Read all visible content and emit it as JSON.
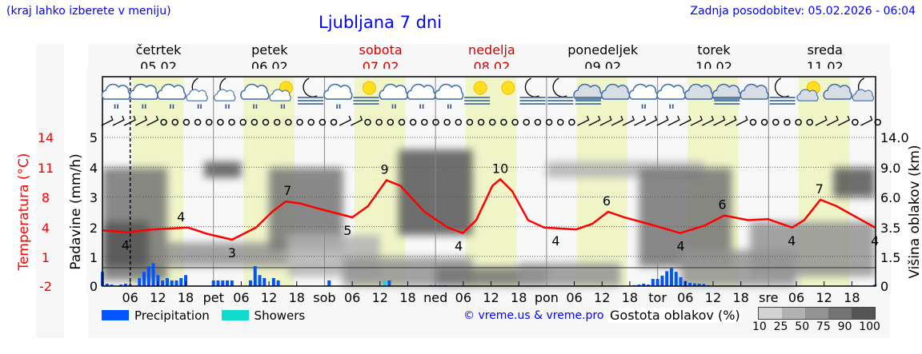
{
  "header": {
    "hint": "(kraj lahko izberete v meniju)",
    "title": "Ljubljana 7 dni",
    "updated": "Zadnja posodobitev: 05.02.2026 - 06:04"
  },
  "days": [
    {
      "name": "četrtek",
      "date": "05.02",
      "weekend": false
    },
    {
      "name": "petek",
      "date": "06.02",
      "weekend": false
    },
    {
      "name": "sobota",
      "date": "07.02",
      "weekend": true
    },
    {
      "name": "nedelja",
      "date": "08.02",
      "weekend": true
    },
    {
      "name": "ponedeljek",
      "date": "09.02",
      "weekend": false
    },
    {
      "name": "torek",
      "date": "10.02",
      "weekend": false
    },
    {
      "name": "sreda",
      "date": "11.02",
      "weekend": false
    }
  ],
  "axes": {
    "temp_label": "Temperatura (°C)",
    "precip_label": "Padavine (mm/h)",
    "cloud_label": "Višina oblakov (km)"
  },
  "legend": {
    "precip": "Precipitation",
    "showers": "Showers",
    "copyright": "© vreme.us & vreme.pro",
    "cloud_density": "Gostota oblakov (%)",
    "density_levels": [
      "10",
      "25",
      "50",
      "75",
      "90",
      "100"
    ]
  },
  "colors": {
    "precip": "#0055ff",
    "showers": "#11dccc",
    "temp": "#ff0000",
    "daylight": "#f0f5c8",
    "weekend": "#d00000",
    "link": "#0000ff"
  },
  "chart_data": {
    "type": "line",
    "x_unit": "hours from Thu 05.02 00:00",
    "x_tick_labels": [
      "06",
      "12",
      "18",
      "pet",
      "06",
      "12",
      "18",
      "sob",
      "06",
      "12",
      "18",
      "ned",
      "06",
      "12",
      "18",
      "pon",
      "06",
      "12",
      "18",
      "tor",
      "06",
      "12",
      "18",
      "sre",
      "06",
      "12",
      "18"
    ],
    "temp_ticks": [
      "14",
      "11",
      "8",
      "4",
      "1",
      "-2"
    ],
    "temp_ylim": [
      -2,
      14
    ],
    "precip_ticks": [
      "5",
      "4",
      "3",
      "2",
      "1",
      "0"
    ],
    "precip_ylim": [
      0,
      5
    ],
    "cloud_ticks": [
      "14.0",
      "9.0",
      "6.0",
      "3.5",
      "1.5",
      "0"
    ],
    "grid": true,
    "now_hour": 6,
    "temperature": [
      [
        0,
        4.0
      ],
      [
        5.5,
        3.8
      ],
      [
        10.7,
        4.1
      ],
      [
        18.5,
        4.3
      ],
      [
        22.8,
        3.6
      ],
      [
        28,
        3.0
      ],
      [
        33.2,
        4.3
      ],
      [
        36.7,
        6.0
      ],
      [
        39.6,
        7.1
      ],
      [
        42.7,
        6.9
      ],
      [
        47,
        6.3
      ],
      [
        54,
        5.4
      ],
      [
        57.4,
        6.6
      ],
      [
        61.4,
        9.4
      ],
      [
        64.4,
        8.8
      ],
      [
        69.6,
        6.0
      ],
      [
        74.7,
        4.3
      ],
      [
        77.9,
        3.7
      ],
      [
        80.8,
        5.1
      ],
      [
        84.3,
        8.8
      ],
      [
        86,
        9.5
      ],
      [
        88.6,
        8.2
      ],
      [
        92,
        5.1
      ],
      [
        95.5,
        4.3
      ],
      [
        102.4,
        4.1
      ],
      [
        105.9,
        4.7
      ],
      [
        109.3,
        6.0
      ],
      [
        112.8,
        5.4
      ],
      [
        118,
        4.7
      ],
      [
        124.9,
        3.7
      ],
      [
        130.1,
        4.5
      ],
      [
        134.4,
        5.6
      ],
      [
        139.6,
        5.1
      ],
      [
        143.9,
        5.2
      ],
      [
        149.1,
        4.3
      ],
      [
        151.7,
        5.1
      ],
      [
        155.2,
        7.3
      ],
      [
        158.7,
        6.6
      ],
      [
        167,
        4.3
      ]
    ],
    "temp_labels": [
      [
        5,
        "4"
      ],
      [
        17,
        "4"
      ],
      [
        28,
        "3"
      ],
      [
        40,
        "7"
      ],
      [
        53,
        "5"
      ],
      [
        61,
        "9"
      ],
      [
        77,
        "4"
      ],
      [
        86,
        "10"
      ],
      [
        98,
        "4"
      ],
      [
        109,
        "6"
      ],
      [
        125,
        "4"
      ],
      [
        134,
        "6"
      ],
      [
        149,
        "4"
      ],
      [
        155,
        "7"
      ],
      [
        167,
        "4"
      ]
    ],
    "precipitation": [
      [
        0,
        0.48
      ],
      [
        1,
        0.08
      ],
      [
        2,
        0.05
      ],
      [
        4,
        0.05
      ],
      [
        5,
        0.08
      ],
      [
        6,
        0.05
      ],
      [
        8,
        0.27
      ],
      [
        9,
        0.48
      ],
      [
        10,
        0.66
      ],
      [
        11,
        0.77
      ],
      [
        12,
        0.37
      ],
      [
        13,
        0.19
      ],
      [
        14,
        0.27
      ],
      [
        15,
        0.19
      ],
      [
        16,
        0.19
      ],
      [
        17,
        0.27
      ],
      [
        18,
        0.37
      ],
      [
        24,
        0.19
      ],
      [
        25,
        0.19
      ],
      [
        26,
        0.19
      ],
      [
        27,
        0.19
      ],
      [
        28,
        0.19
      ],
      [
        32,
        0.19
      ],
      [
        33,
        0.67
      ],
      [
        34,
        0.37
      ],
      [
        35,
        0.27
      ],
      [
        37,
        0.27
      ],
      [
        38,
        0.19
      ],
      [
        49,
        0.19
      ],
      [
        62,
        0.19
      ],
      [
        71,
        0.03
      ],
      [
        72,
        0.03
      ],
      [
        73,
        0.03
      ],
      [
        74,
        0.03
      ],
      [
        115,
        0.03
      ],
      [
        116,
        0.05
      ],
      [
        117,
        0.08
      ],
      [
        118,
        0.05
      ],
      [
        119,
        0.24
      ],
      [
        120,
        0.24
      ],
      [
        121,
        0.35
      ],
      [
        122,
        0.5
      ],
      [
        123,
        0.6
      ],
      [
        124,
        0.48
      ],
      [
        125,
        0.3
      ],
      [
        126,
        0.17
      ],
      [
        127,
        0.11
      ],
      [
        128,
        0.09
      ],
      [
        129,
        0.08
      ],
      [
        130,
        0.07
      ],
      [
        131,
        0.03
      ],
      [
        167,
        0.05
      ]
    ],
    "showers": [
      [
        61,
        0.19
      ]
    ],
    "cloud_density": [
      [
        0,
        14,
        0.3,
        9,
        75
      ],
      [
        0,
        10,
        1,
        4,
        90
      ],
      [
        14,
        40,
        1,
        2.5,
        50
      ],
      [
        22,
        30,
        8,
        10,
        90
      ],
      [
        36,
        52,
        2,
        9,
        75
      ],
      [
        40,
        60,
        0.5,
        3,
        25
      ],
      [
        64,
        80,
        3,
        12,
        90
      ],
      [
        52,
        80,
        0,
        1.5,
        50
      ],
      [
        72,
        96,
        0,
        1,
        75
      ],
      [
        90,
        112,
        0,
        1.2,
        50
      ],
      [
        96,
        130,
        8,
        10,
        25
      ],
      [
        116,
        136,
        1,
        9,
        75
      ],
      [
        125,
        150,
        0,
        2,
        50
      ],
      [
        140,
        167,
        0.5,
        4,
        50
      ],
      [
        158,
        167,
        6,
        9,
        90
      ]
    ],
    "weather_icons": [
      "cloud-rain",
      "cloud-rain",
      "cloud-rain",
      "moon-cloud-rain",
      "moon-cloud-rain",
      "cloud-rain",
      "sun-cloud-rain",
      "moon-fog",
      "cloud-rain",
      "sun-fog",
      "cloud-rain",
      "cloud-rain",
      "cloud-rain",
      "sun-fog",
      "sun",
      "moon-fog",
      "moon-fog",
      "cloud-fog",
      "cloud",
      "cloud-rain",
      "cloud-rain",
      "cloud",
      "cloud-fog",
      "cloud",
      "moon-fog",
      "sun-cloud",
      "cloud",
      "moon-cloud"
    ],
    "wind": [
      "barb",
      "barb",
      "barb",
      "barb",
      "barb",
      "calm",
      "calm",
      "calm",
      "calm",
      "calm",
      "calm",
      "calm",
      "calm",
      "calm",
      "calm",
      "calm",
      "calm",
      "calm",
      "calm",
      "calm",
      "calm",
      "barb",
      "barb",
      "calm",
      "calm",
      "calm",
      "calm",
      "calm",
      "calm",
      "calm",
      "calm",
      "calm",
      "calm",
      "calm",
      "calm",
      "calm",
      "calm",
      "calm",
      "calm",
      "calm",
      "calm",
      "calm",
      "barb",
      "barb",
      "barb",
      "barb",
      "barb",
      "barb",
      "barb",
      "barb",
      "barb",
      "barb",
      "barb",
      "barb",
      "barb",
      "barb",
      "barb",
      "calm",
      "calm",
      "calm",
      "calm",
      "calm",
      "calm",
      "barb",
      "barb",
      "barb",
      "calm",
      "barb",
      "calm"
    ]
  }
}
